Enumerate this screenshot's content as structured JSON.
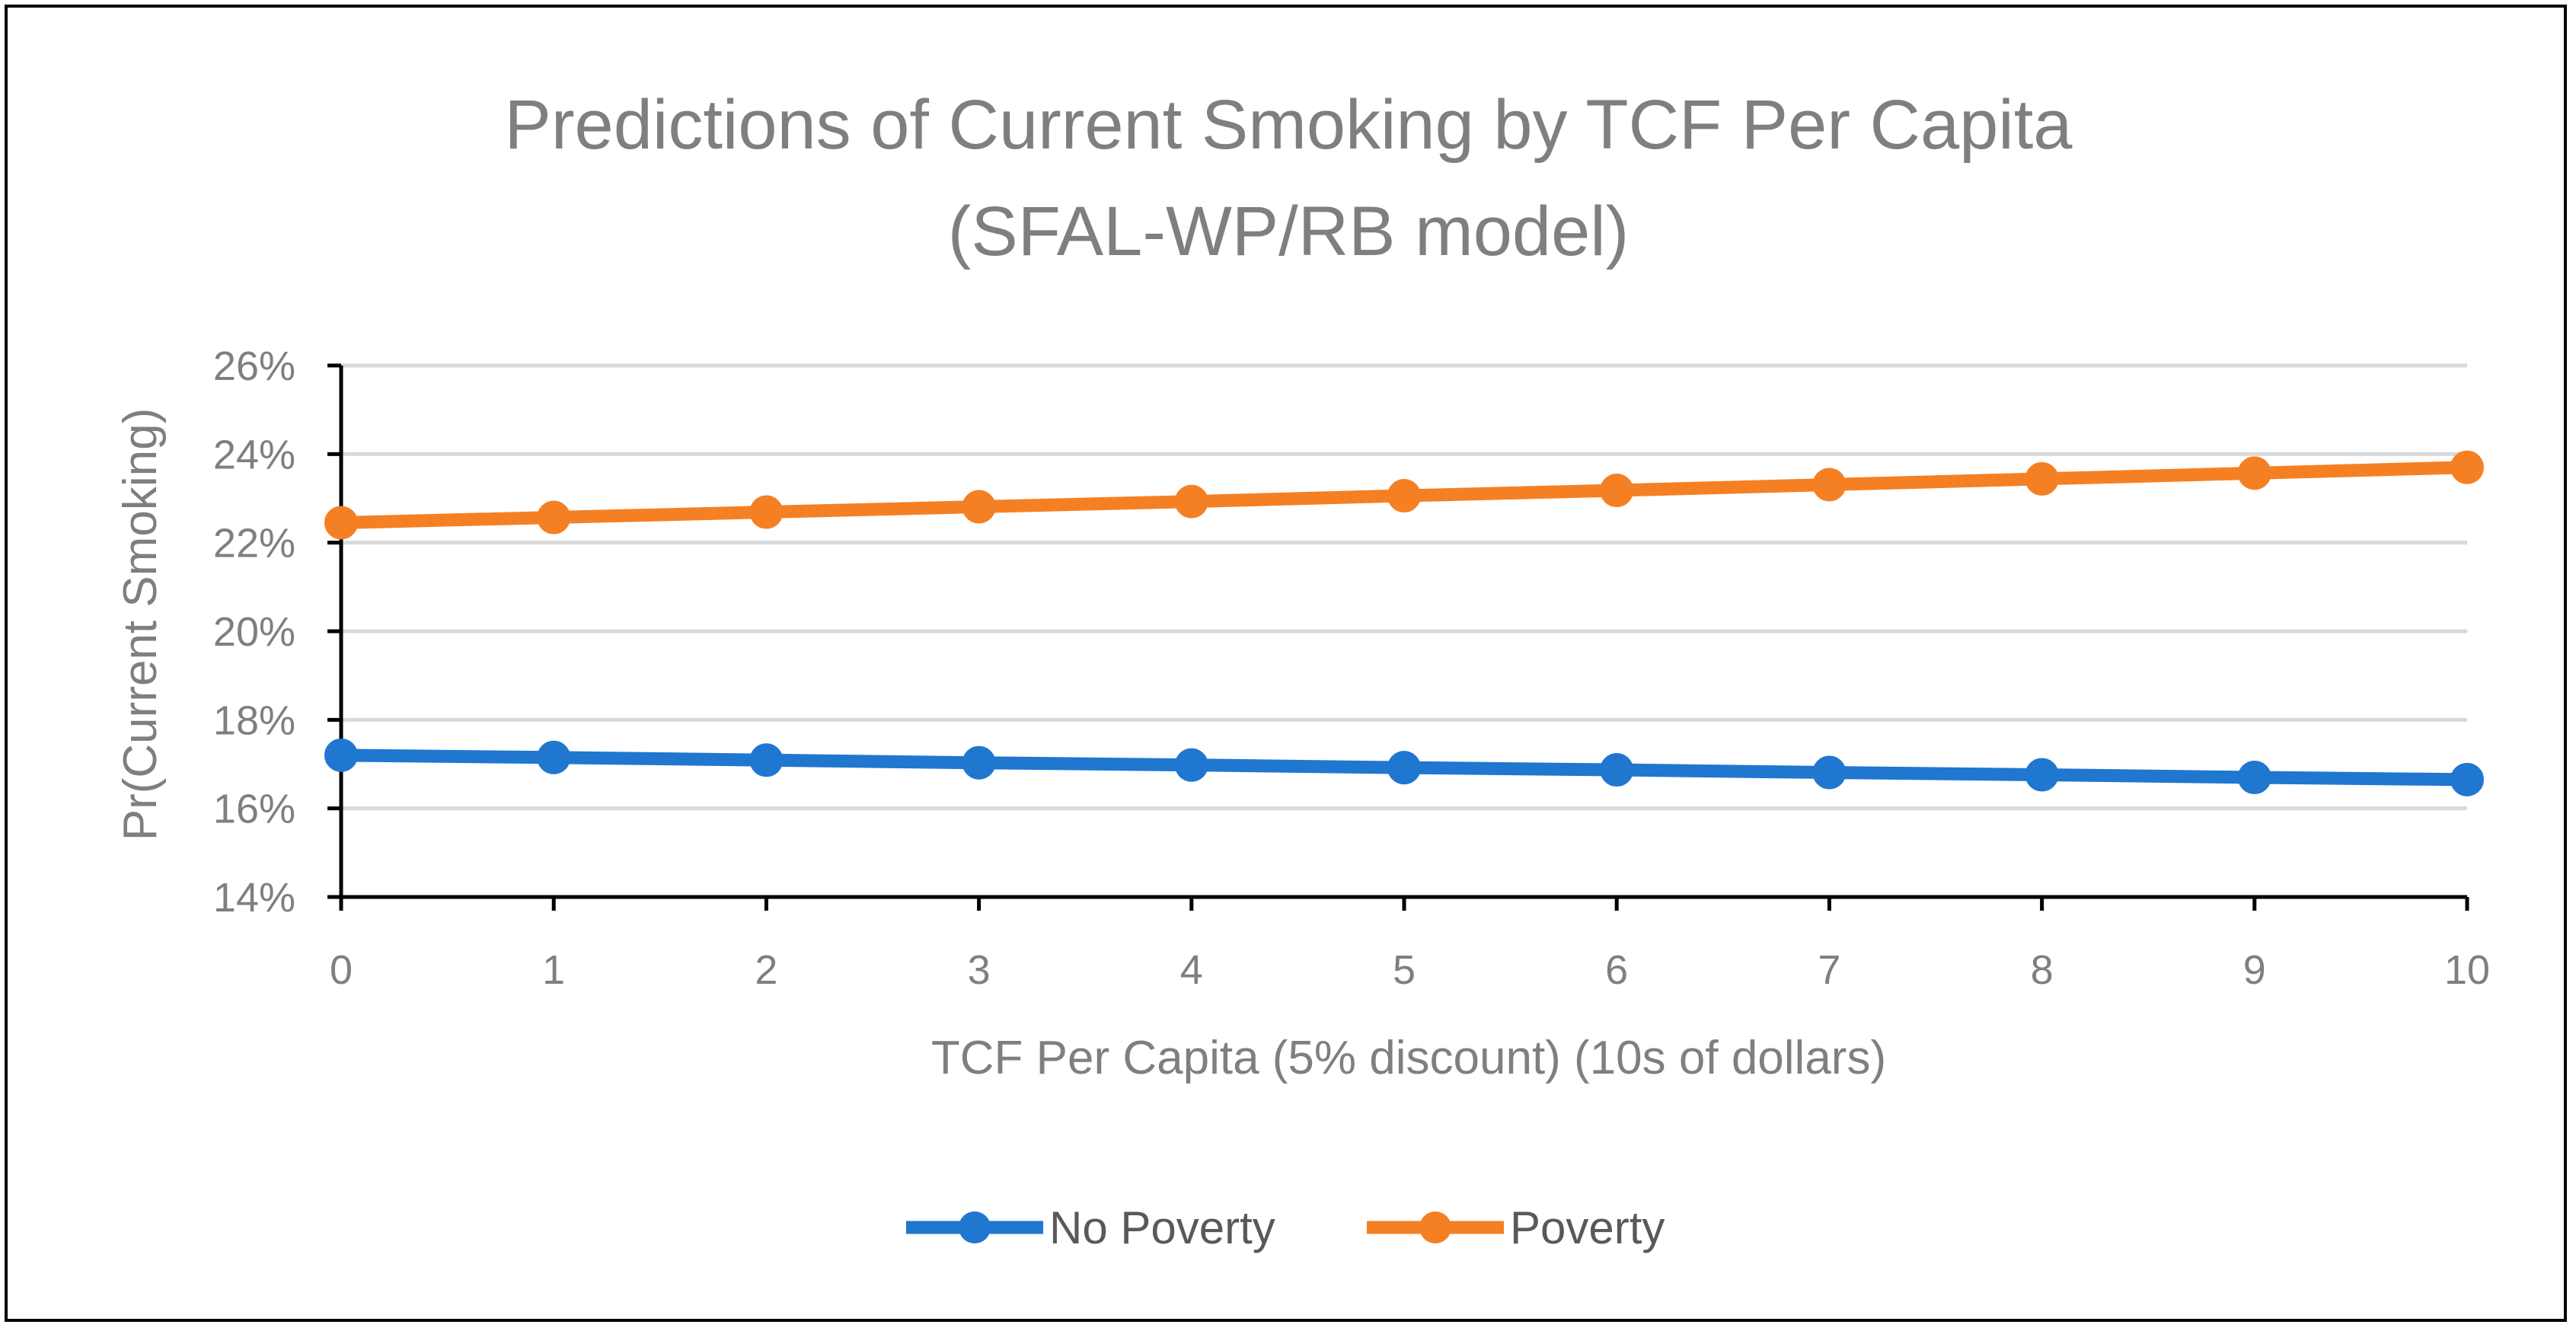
{
  "chart_data": {
    "type": "line",
    "title": "Predictions of Current Smoking by TCF Per Capita",
    "subtitle": "(SFAL-WP/RB model)",
    "xlabel": "TCF Per Capita (5% discount) (10s of dollars)",
    "ylabel": "Pr(Current Smoking)",
    "x": [
      0,
      1,
      2,
      3,
      4,
      5,
      6,
      7,
      8,
      9,
      10
    ],
    "x_tick_labels": [
      "0",
      "1",
      "2",
      "3",
      "4",
      "5",
      "6",
      "7",
      "8",
      "9",
      "10"
    ],
    "ylim": [
      0.14,
      0.26
    ],
    "y_ticks": [
      0.14,
      0.16,
      0.18,
      0.2,
      0.22,
      0.24,
      0.26
    ],
    "y_tick_labels": [
      "14%",
      "16%",
      "18%",
      "20%",
      "22%",
      "24%",
      "26%"
    ],
    "grid": true,
    "legend_position": "bottom",
    "series": [
      {
        "name": "No Poverty",
        "color": "#1f77d0",
        "values": [
          0.172,
          0.1715,
          0.1709,
          0.1703,
          0.1698,
          0.1692,
          0.1687,
          0.1681,
          0.1676,
          0.167,
          0.1665
        ]
      },
      {
        "name": "Poverty",
        "color": "#f58024",
        "values": [
          0.2245,
          0.2257,
          0.2269,
          0.2281,
          0.2293,
          0.2306,
          0.2318,
          0.2331,
          0.2344,
          0.2357,
          0.237
        ]
      }
    ]
  }
}
